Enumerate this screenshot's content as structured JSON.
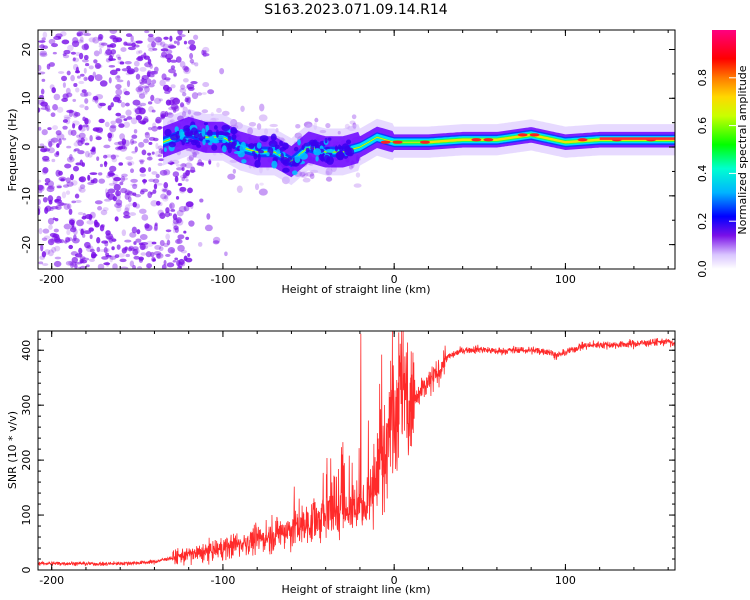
{
  "figure_title": "S163.2023.071.09.14.R14",
  "colors": {
    "snr_line": "#ff2a2a",
    "scatter": "#7a10e8",
    "frame": "#000000"
  },
  "chart_data": [
    {
      "type": "heatmap",
      "title": "",
      "xlabel": "Height of straight line (km)",
      "ylabel": "Frequency (Hz)",
      "xlim": [
        -208,
        164
      ],
      "ylim": [
        -25,
        24
      ],
      "x_ticks": [
        -200,
        -100,
        0,
        100
      ],
      "y_ticks": [
        -20,
        -10,
        0,
        10,
        20
      ],
      "colorbar": {
        "label": "Normalized spectral amplitude",
        "range": [
          0,
          1
        ],
        "ticks": [
          "0.0",
          "0.2",
          "0.4",
          "0.6",
          "0.8"
        ],
        "tick_values": [
          0,
          0.2,
          0.4,
          0.6,
          0.8
        ],
        "colormap": [
          "#ffffff",
          "#b48cff",
          "#6a00ff",
          "#0000ff",
          "#00ffff",
          "#00ff00",
          "#ffff00",
          "#ff8000",
          "#ff0000",
          "#ff0080"
        ]
      },
      "ridge": {
        "x": [
          -135,
          -120,
          -110,
          -100,
          -90,
          -80,
          -70,
          -60,
          -50,
          -40,
          -30,
          -20,
          -10,
          0,
          10,
          20,
          40,
          60,
          80,
          100,
          120,
          164
        ],
        "freq": [
          1,
          3,
          2,
          2,
          0,
          -1,
          -1,
          -3,
          0,
          -1,
          -1,
          0,
          2,
          1,
          1,
          1,
          1.5,
          1.5,
          2.5,
          1,
          1.5,
          1.5
        ]
      },
      "grid": false
    },
    {
      "type": "line",
      "title": "",
      "xlabel": "Height of straight line (km)",
      "ylabel": "SNR (10 * v/v)",
      "xlim": [
        -208,
        164
      ],
      "ylim": [
        0,
        435
      ],
      "x_ticks": [
        -200,
        -100,
        0,
        100
      ],
      "y_ticks": [
        0,
        100,
        200,
        300,
        400
      ],
      "trend": {
        "x": [
          -208,
          -190,
          -170,
          -150,
          -140,
          -130,
          -120,
          -110,
          -100,
          -90,
          -80,
          -70,
          -60,
          -50,
          -40,
          -30,
          -25,
          -20,
          -15,
          -10,
          -5,
          0,
          5,
          10,
          15,
          20,
          25,
          30,
          40,
          50,
          60,
          70,
          80,
          90,
          95,
          100,
          110,
          120,
          130,
          140,
          150,
          160,
          164
        ],
        "y": [
          12,
          12,
          11,
          13,
          15,
          22,
          28,
          32,
          40,
          48,
          55,
          65,
          75,
          85,
          95,
          110,
          115,
          120,
          130,
          160,
          240,
          300,
          330,
          300,
          320,
          340,
          355,
          385,
          400,
          402,
          398,
          400,
          400,
          398,
          390,
          396,
          408,
          410,
          410,
          412,
          414,
          416,
          410
        ]
      },
      "grid": false
    }
  ]
}
